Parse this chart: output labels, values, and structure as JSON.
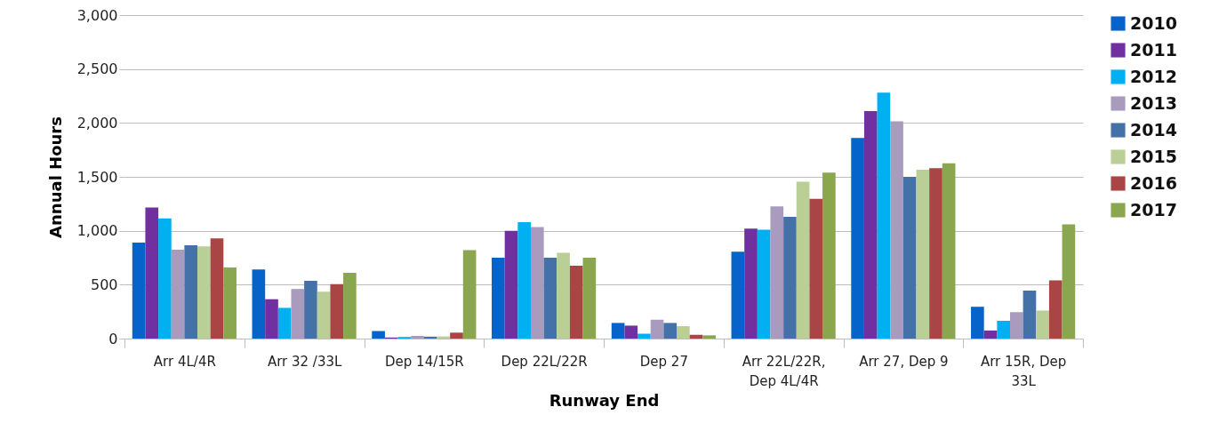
{
  "chart_data": {
    "type": "bar",
    "xlabel": "Runway End",
    "ylabel": "Annual Hours",
    "categories": [
      "Arr 4L/4R",
      "Arr 32 /33L",
      "Dep 14/15R",
      "Dep 22L/22R",
      "Dep 27",
      "Arr 22L/22R, Dep 4L/4R",
      "Arr 27, Dep 9",
      "Arr 15R, Dep 33L"
    ],
    "series": [
      {
        "name": "2010",
        "color": "#0563c9",
        "values": [
          890,
          640,
          70,
          750,
          145,
          805,
          1860,
          295
        ]
      },
      {
        "name": "2011",
        "color": "#7030a0",
        "values": [
          1215,
          365,
          10,
          1000,
          120,
          1020,
          2110,
          75
        ]
      },
      {
        "name": "2012",
        "color": "#00b0f0",
        "values": [
          1115,
          285,
          15,
          1080,
          45,
          1010,
          2280,
          165
        ]
      },
      {
        "name": "2013",
        "color": "#a99bbd",
        "values": [
          825,
          460,
          25,
          1035,
          175,
          1225,
          2015,
          245
        ]
      },
      {
        "name": "2014",
        "color": "#4472a8",
        "values": [
          865,
          535,
          18,
          750,
          145,
          1130,
          1500,
          445
        ]
      },
      {
        "name": "2015",
        "color": "#bacf95",
        "values": [
          855,
          435,
          20,
          795,
          115,
          1455,
          1565,
          260
        ]
      },
      {
        "name": "2016",
        "color": "#a94545",
        "values": [
          930,
          505,
          55,
          675,
          35,
          1295,
          1580,
          540
        ]
      },
      {
        "name": "2017",
        "color": "#8aa64e",
        "values": [
          660,
          610,
          820,
          750,
          30,
          1540,
          1625,
          1060
        ]
      }
    ],
    "ylim": [
      0,
      3000
    ],
    "yticks": [
      {
        "value": 0,
        "label": "0"
      },
      {
        "value": 500,
        "label": "500"
      },
      {
        "value": 1000,
        "label": "1,000"
      },
      {
        "value": 1500,
        "label": "1,500"
      },
      {
        "value": 2000,
        "label": "2,000"
      },
      {
        "value": 2500,
        "label": "2,500"
      },
      {
        "value": 3000,
        "label": "3,000"
      }
    ],
    "grid": "y",
    "legend": "right"
  }
}
